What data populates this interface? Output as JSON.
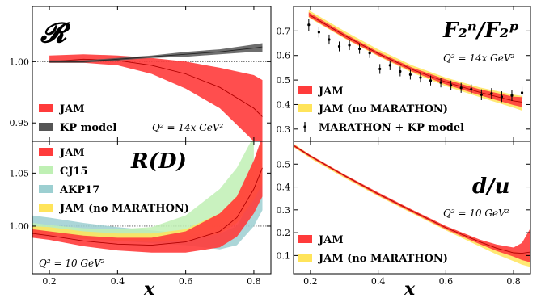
{
  "chart_data": [
    {
      "id": "A",
      "type": "area",
      "title": "𝓡",
      "annotation": "Q² = 14x GeV²",
      "xlim": [
        0.15,
        0.85
      ],
      "ylim": [
        0.935,
        1.045
      ],
      "yticks": [
        0.95,
        1.0
      ],
      "ytick_labels": [
        "0.95",
        "1.00"
      ],
      "reference_line": 1.0,
      "legend": {
        "placement": "bottom-left",
        "entries": [
          "JAM",
          "KP model"
        ]
      },
      "series": [
        {
          "name": "JAM",
          "color": "#ff3b3b",
          "x": [
            0.2,
            0.3,
            0.4,
            0.5,
            0.6,
            0.7,
            0.8,
            0.825
          ],
          "center": [
            1.0,
            1.002,
            1.001,
            0.997,
            0.99,
            0.979,
            0.962,
            0.955
          ],
          "low": [
            0.999,
            0.999,
            0.997,
            0.99,
            0.978,
            0.962,
            0.935,
            0.925
          ],
          "high": [
            1.005,
            1.006,
            1.005,
            1.003,
            1.0,
            0.995,
            0.989,
            0.985
          ]
        },
        {
          "name": "KP model",
          "color": "#555555",
          "x": [
            0.2,
            0.3,
            0.4,
            0.5,
            0.6,
            0.7,
            0.8,
            0.825
          ],
          "center": [
            1.0,
            1.0,
            1.002,
            1.004,
            1.006,
            1.008,
            1.011,
            1.012
          ],
          "low": [
            0.999,
            0.999,
            1.001,
            1.003,
            1.004,
            1.006,
            1.008,
            1.008
          ],
          "high": [
            1.001,
            1.001,
            1.003,
            1.005,
            1.008,
            1.01,
            1.014,
            1.015
          ]
        }
      ]
    },
    {
      "id": "B",
      "type": "area",
      "title": "F₂ⁿ/F₂ᵖ",
      "annotation": "Q² = 14x GeV²",
      "xlim": [
        0.15,
        0.85
      ],
      "ylim": [
        0.25,
        0.8
      ],
      "yticks": [
        0.3,
        0.4,
        0.5,
        0.6,
        0.7
      ],
      "ytick_labels": [
        "0.3",
        "0.4",
        "0.5",
        "0.6",
        "0.7"
      ],
      "legend": {
        "placement": "bottom-left",
        "entries": [
          "JAM",
          "JAM (no MARATHON)",
          "MARATHON + KP model"
        ]
      },
      "series": [
        {
          "name": "JAM (no MARATHON)",
          "color": "#ffe45a",
          "x": [
            0.195,
            0.3,
            0.4,
            0.5,
            0.6,
            0.7,
            0.8,
            0.825
          ],
          "low": [
            0.755,
            0.67,
            0.597,
            0.53,
            0.475,
            0.43,
            0.387,
            0.375
          ],
          "high": [
            0.785,
            0.7,
            0.625,
            0.56,
            0.51,
            0.47,
            0.44,
            0.435
          ]
        },
        {
          "name": "JAM",
          "color": "#ff3b3b",
          "x": [
            0.195,
            0.3,
            0.4,
            0.5,
            0.6,
            0.7,
            0.8,
            0.825
          ],
          "center": [
            0.767,
            0.682,
            0.608,
            0.543,
            0.492,
            0.45,
            0.415,
            0.41
          ],
          "low": [
            0.758,
            0.673,
            0.6,
            0.535,
            0.482,
            0.438,
            0.398,
            0.39
          ],
          "high": [
            0.776,
            0.69,
            0.615,
            0.551,
            0.502,
            0.462,
            0.432,
            0.43
          ]
        },
        {
          "name": "MARATHON + KP model",
          "color": "#000000",
          "points": [
            {
              "x": 0.195,
              "y": 0.725,
              "err": 0.025
            },
            {
              "x": 0.225,
              "y": 0.695,
              "err": 0.022
            },
            {
              "x": 0.255,
              "y": 0.665,
              "err": 0.02
            },
            {
              "x": 0.285,
              "y": 0.637,
              "err": 0.02
            },
            {
              "x": 0.315,
              "y": 0.642,
              "err": 0.02
            },
            {
              "x": 0.345,
              "y": 0.627,
              "err": 0.02
            },
            {
              "x": 0.375,
              "y": 0.61,
              "err": 0.02
            },
            {
              "x": 0.405,
              "y": 0.545,
              "err": 0.02
            },
            {
              "x": 0.435,
              "y": 0.56,
              "err": 0.02
            },
            {
              "x": 0.465,
              "y": 0.535,
              "err": 0.02
            },
            {
              "x": 0.495,
              "y": 0.522,
              "err": 0.02
            },
            {
              "x": 0.525,
              "y": 0.51,
              "err": 0.02
            },
            {
              "x": 0.555,
              "y": 0.498,
              "err": 0.02
            },
            {
              "x": 0.585,
              "y": 0.49,
              "err": 0.02
            },
            {
              "x": 0.615,
              "y": 0.478,
              "err": 0.02
            },
            {
              "x": 0.645,
              "y": 0.468,
              "err": 0.02
            },
            {
              "x": 0.675,
              "y": 0.462,
              "err": 0.02
            },
            {
              "x": 0.705,
              "y": 0.44,
              "err": 0.022
            },
            {
              "x": 0.735,
              "y": 0.445,
              "err": 0.022
            },
            {
              "x": 0.765,
              "y": 0.432,
              "err": 0.022
            },
            {
              "x": 0.795,
              "y": 0.437,
              "err": 0.022
            },
            {
              "x": 0.825,
              "y": 0.448,
              "err": 0.025
            }
          ]
        }
      ]
    },
    {
      "id": "C",
      "type": "area",
      "title": "R(D)",
      "annotation": "Q² = 10 GeV²",
      "xlabel": "x",
      "xlim": [
        0.15,
        0.85
      ],
      "ylim": [
        0.955,
        1.08
      ],
      "xticks": [
        0.2,
        0.4,
        0.6,
        0.8
      ],
      "xtick_labels": [
        "0.2",
        "0.4",
        "0.6",
        "0.8"
      ],
      "yticks": [
        1.0,
        1.05
      ],
      "ytick_labels": [
        "1.00",
        "1.05"
      ],
      "reference_line": 1.0,
      "legend": {
        "placement": "top-left",
        "entries": [
          "JAM",
          "CJ15",
          "AKP17",
          "JAM (no MARATHON)"
        ]
      },
      "series": [
        {
          "name": "AKP17",
          "color": "#9ccfd1",
          "x": [
            0.15,
            0.2,
            0.3,
            0.4,
            0.5,
            0.6,
            0.7,
            0.75,
            0.8,
            0.825
          ],
          "low": [
            0.99,
            0.99,
            0.988,
            0.986,
            0.984,
            0.982,
            0.978,
            0.982,
            1.0,
            1.015
          ],
          "high": [
            1.01,
            1.008,
            1.003,
            0.999,
            0.996,
            0.993,
            0.993,
            1.0,
            1.03,
            1.05
          ]
        },
        {
          "name": "CJ15",
          "color": "#bff0b4",
          "x": [
            0.15,
            0.2,
            0.3,
            0.4,
            0.5,
            0.6,
            0.7,
            0.75,
            0.8
          ],
          "low": [
            0.993,
            0.993,
            0.99,
            0.988,
            0.988,
            0.99,
            1.0,
            1.015,
            1.04
          ],
          "high": [
            1.003,
            1.001,
            0.998,
            0.997,
            0.999,
            1.01,
            1.035,
            1.055,
            1.085
          ]
        },
        {
          "name": "JAM (no MARATHON)",
          "color": "#ffe45a",
          "x": [
            0.15,
            0.2,
            0.3,
            0.4,
            0.5,
            0.6,
            0.7,
            0.75,
            0.8,
            0.825
          ],
          "low": [
            0.993,
            0.992,
            0.988,
            0.986,
            0.985,
            0.986,
            0.993,
            1.003,
            1.025,
            1.04
          ],
          "high": [
            1.0,
            0.999,
            0.995,
            0.993,
            0.993,
            0.997,
            1.012,
            1.028,
            1.06,
            1.08
          ]
        },
        {
          "name": "JAM",
          "color": "#ff3b3b",
          "x": [
            0.15,
            0.2,
            0.3,
            0.4,
            0.5,
            0.6,
            0.7,
            0.75,
            0.8,
            0.825
          ],
          "center": [
            0.993,
            0.991,
            0.986,
            0.983,
            0.982,
            0.985,
            0.995,
            1.008,
            1.035,
            1.055
          ],
          "low": [
            0.989,
            0.987,
            0.981,
            0.977,
            0.975,
            0.975,
            0.98,
            0.99,
            1.012,
            1.028
          ],
          "high": [
            0.997,
            0.995,
            0.991,
            0.989,
            0.989,
            0.995,
            1.012,
            1.028,
            1.062,
            1.085
          ]
        }
      ]
    },
    {
      "id": "D",
      "type": "area",
      "title": "d/u",
      "annotation": "Q² = 10 GeV²",
      "xlabel": "x",
      "xlim": [
        0.15,
        0.85
      ],
      "ylim": [
        0.02,
        0.6
      ],
      "xticks": [
        0.2,
        0.4,
        0.6,
        0.8
      ],
      "xtick_labels": [
        "0.2",
        "0.4",
        "0.6",
        "0.8"
      ],
      "yticks": [
        0.1,
        0.2,
        0.3,
        0.4,
        0.5
      ],
      "ytick_labels": [
        "0.1",
        "0.2",
        "0.3",
        "0.4",
        "0.5"
      ],
      "legend": {
        "placement": "bottom-left",
        "entries": [
          "JAM",
          "JAM (no MARATHON)"
        ]
      },
      "series": [
        {
          "name": "JAM (no MARATHON)",
          "color": "#ffe45a",
          "x": [
            0.15,
            0.2,
            0.3,
            0.4,
            0.5,
            0.6,
            0.7,
            0.75,
            0.8,
            0.825,
            0.85
          ],
          "low": [
            0.575,
            0.525,
            0.44,
            0.36,
            0.285,
            0.21,
            0.14,
            0.105,
            0.075,
            0.06,
            0.05
          ],
          "high": [
            0.59,
            0.54,
            0.455,
            0.375,
            0.3,
            0.228,
            0.165,
            0.14,
            0.12,
            0.11,
            0.1
          ]
        },
        {
          "name": "JAM",
          "color": "#ff3b3b",
          "x": [
            0.15,
            0.2,
            0.3,
            0.4,
            0.5,
            0.6,
            0.7,
            0.75,
            0.8,
            0.825,
            0.85
          ],
          "center": [
            0.582,
            0.535,
            0.45,
            0.37,
            0.295,
            0.222,
            0.16,
            0.132,
            0.112,
            0.11,
            0.115
          ],
          "low": [
            0.577,
            0.53,
            0.445,
            0.364,
            0.289,
            0.215,
            0.15,
            0.12,
            0.095,
            0.08,
            0.07
          ],
          "high": [
            0.587,
            0.54,
            0.455,
            0.376,
            0.301,
            0.229,
            0.17,
            0.148,
            0.135,
            0.155,
            0.22
          ]
        }
      ]
    }
  ]
}
